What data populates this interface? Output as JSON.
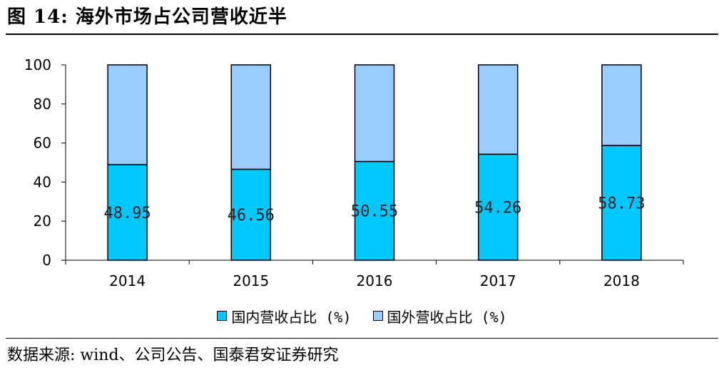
{
  "figure": {
    "title": "图 14: 海外市场占公司营收近半",
    "source": "数据来源: wind、公司公告、国泰君安证券研究"
  },
  "colors": {
    "domestic": "#00C8FF",
    "overseas": "#99CCFF",
    "outline": "#000000"
  },
  "chart_data": {
    "type": "bar",
    "stacked": true,
    "categories": [
      "2014",
      "2015",
      "2016",
      "2017",
      "2018"
    ],
    "series": [
      {
        "name": "国内营收占比 (%)",
        "values": [
          48.95,
          46.56,
          50.55,
          54.26,
          58.73
        ],
        "data_labels": [
          "48.95",
          "46.56",
          "50.55",
          "54.26",
          "58.73"
        ]
      },
      {
        "name": "国外营收占比 (%)",
        "values": [
          51.05,
          53.44,
          49.45,
          45.74,
          41.27
        ]
      }
    ],
    "ylim": [
      0,
      100
    ],
    "yticks": [
      "0",
      "20",
      "40",
      "60",
      "80",
      "100"
    ],
    "grid": false,
    "legend_position": "bottom"
  }
}
